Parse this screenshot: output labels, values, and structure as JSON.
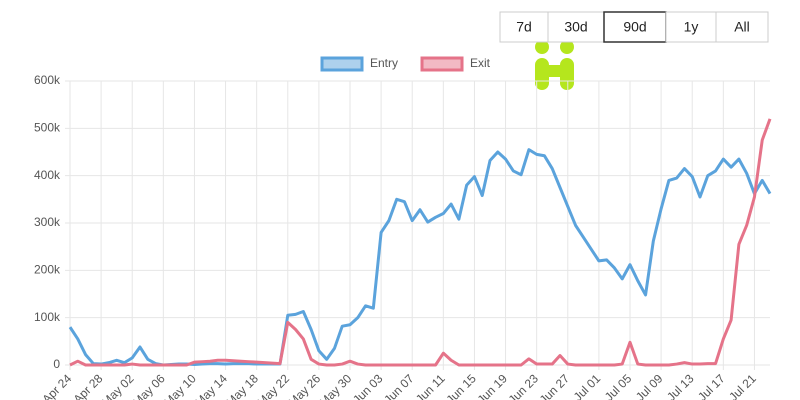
{
  "controls": {
    "ranges": [
      "7d",
      "30d",
      "90d",
      "1y",
      "All"
    ],
    "selected": "90d"
  },
  "chart_data": {
    "type": "line",
    "categories": [
      "Apr 24",
      null,
      null,
      null,
      "Apr 28",
      null,
      null,
      null,
      "May 02",
      null,
      null,
      null,
      "May 06",
      null,
      null,
      null,
      "May 10",
      null,
      null,
      null,
      "May 14",
      null,
      null,
      null,
      "May 18",
      null,
      null,
      null,
      "May 22",
      null,
      null,
      null,
      "May 26",
      null,
      null,
      null,
      "May 30",
      null,
      null,
      null,
      "Jun 03",
      null,
      null,
      null,
      "Jun 07",
      null,
      null,
      null,
      "Jun 11",
      null,
      null,
      null,
      "Jun 15",
      null,
      null,
      null,
      "Jun 19",
      null,
      null,
      null,
      "Jun 23",
      null,
      null,
      null,
      "Jun 27",
      null,
      null,
      null,
      "Jul 01",
      null,
      null,
      null,
      "Jul 05",
      null,
      null,
      null,
      "Jul 09",
      null,
      null,
      null,
      "Jul 13",
      null,
      null,
      null,
      "Jul 17",
      null,
      null,
      null,
      "Jul 21",
      null,
      null
    ],
    "series": [
      {
        "name": "Entry",
        "color": "#5ba3dc",
        "values": [
          80000,
          55000,
          22000,
          3000,
          2000,
          5000,
          10000,
          5000,
          15000,
          38000,
          12000,
          3000,
          0,
          1000,
          2000,
          2000,
          1000,
          2000,
          3000,
          3000,
          2000,
          3000,
          3000,
          3000,
          2000,
          2000,
          2000,
          2000,
          105000,
          107000,
          113000,
          75000,
          30000,
          12000,
          35000,
          82000,
          85000,
          100000,
          125000,
          120000,
          280000,
          305000,
          350000,
          345000,
          305000,
          328000,
          302000,
          312000,
          320000,
          340000,
          308000,
          380000,
          398000,
          358000,
          432000,
          450000,
          435000,
          410000,
          402000,
          455000,
          445000,
          442000,
          415000,
          375000,
          335000,
          295000,
          270000,
          245000,
          220000,
          222000,
          205000,
          182000,
          212000,
          178000,
          148000,
          262000,
          330000,
          390000,
          395000,
          415000,
          398000,
          355000,
          400000,
          410000,
          435000,
          418000,
          435000,
          405000,
          362000,
          390000,
          362000
        ]
      },
      {
        "name": "Exit",
        "color": "#e57389",
        "values": [
          0,
          8000,
          0,
          0,
          0,
          0,
          0,
          0,
          2000,
          0,
          0,
          0,
          0,
          0,
          0,
          0,
          6000,
          7000,
          8000,
          10000,
          10000,
          9000,
          8000,
          7000,
          6000,
          5000,
          4000,
          3000,
          90000,
          75000,
          55000,
          12000,
          2000,
          0,
          0,
          2000,
          8000,
          2000,
          0,
          0,
          0,
          0,
          0,
          0,
          0,
          0,
          0,
          0,
          25000,
          10000,
          0,
          0,
          0,
          0,
          0,
          0,
          0,
          0,
          0,
          13000,
          2000,
          2000,
          2000,
          20000,
          2000,
          0,
          0,
          0,
          0,
          0,
          0,
          2000,
          48000,
          2000,
          0,
          0,
          0,
          0,
          2000,
          5000,
          2000,
          2000,
          3000,
          3000,
          55000,
          95000,
          255000,
          295000,
          355000,
          475000,
          520000
        ]
      }
    ],
    "ylim": [
      0,
      600000
    ],
    "yticks": [
      0,
      {
        "value": 100000,
        "label": "100k"
      },
      {
        "value": 200000,
        "label": "200k"
      },
      {
        "value": 300000,
        "label": "300k"
      },
      {
        "value": 400000,
        "label": "400k"
      },
      {
        "value": 500000,
        "label": "500k"
      },
      {
        "value": 600000,
        "label": "600k"
      }
    ],
    "grid": true,
    "legend": "top"
  }
}
